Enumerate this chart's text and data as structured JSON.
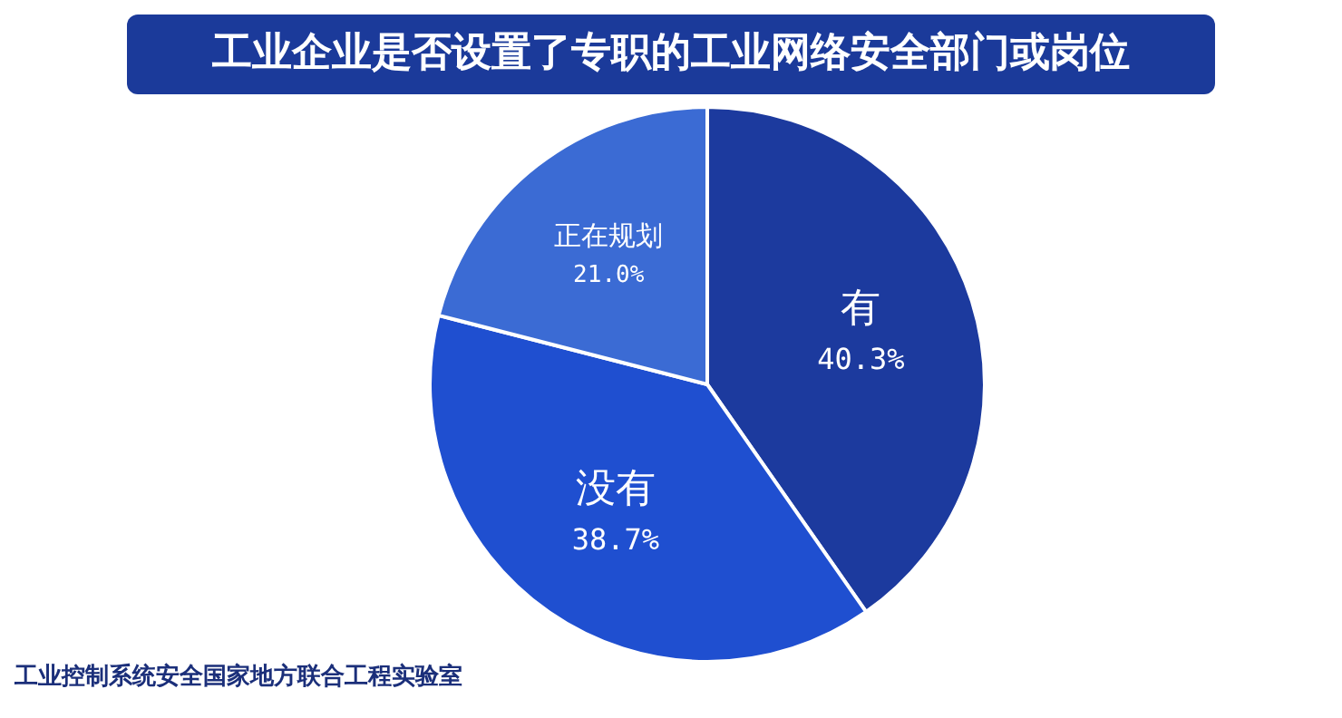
{
  "chart_data": {
    "type": "pie",
    "title": "工业企业是否设置了专职的工业网络安全部门或岗位",
    "categories": [
      "有",
      "没有",
      "正在规划"
    ],
    "values": [
      40.3,
      38.7,
      21.0
    ],
    "value_labels": [
      "40.3%",
      "38.7%",
      "21.0%"
    ],
    "colors": [
      "#1c3a9e",
      "#1f4fd0",
      "#3b6bd4"
    ],
    "annotations": [
      "工业控制系统安全国家地方联合工程实验室"
    ]
  }
}
